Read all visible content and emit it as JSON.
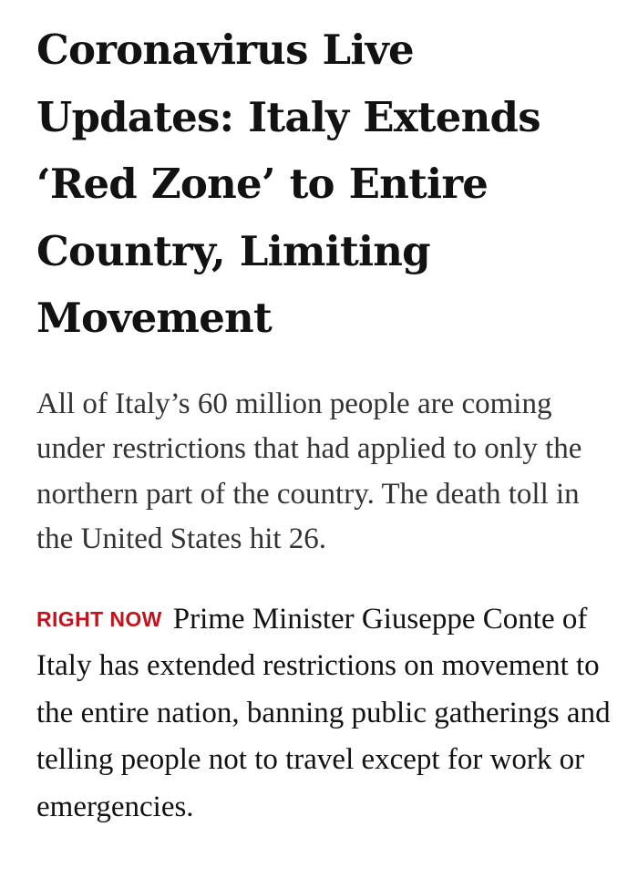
{
  "article": {
    "headline": "Coronavirus Live Updates: Italy Extends ‘Red Zone’ to Entire Country, Limiting Movement",
    "summary": "All of Italy’s 60 million people are coming under restrictions that had applied to only the northern part of the country. The death toll in the United States hit 26.",
    "update": {
      "label": "RIGHT NOW",
      "label_color": "#c4131c",
      "text": "Prime Minister Giuseppe Conte of Italy has extended restrictions on movement to the entire nation, banning public gatherings and telling people not to travel except for work or emergencies."
    }
  }
}
